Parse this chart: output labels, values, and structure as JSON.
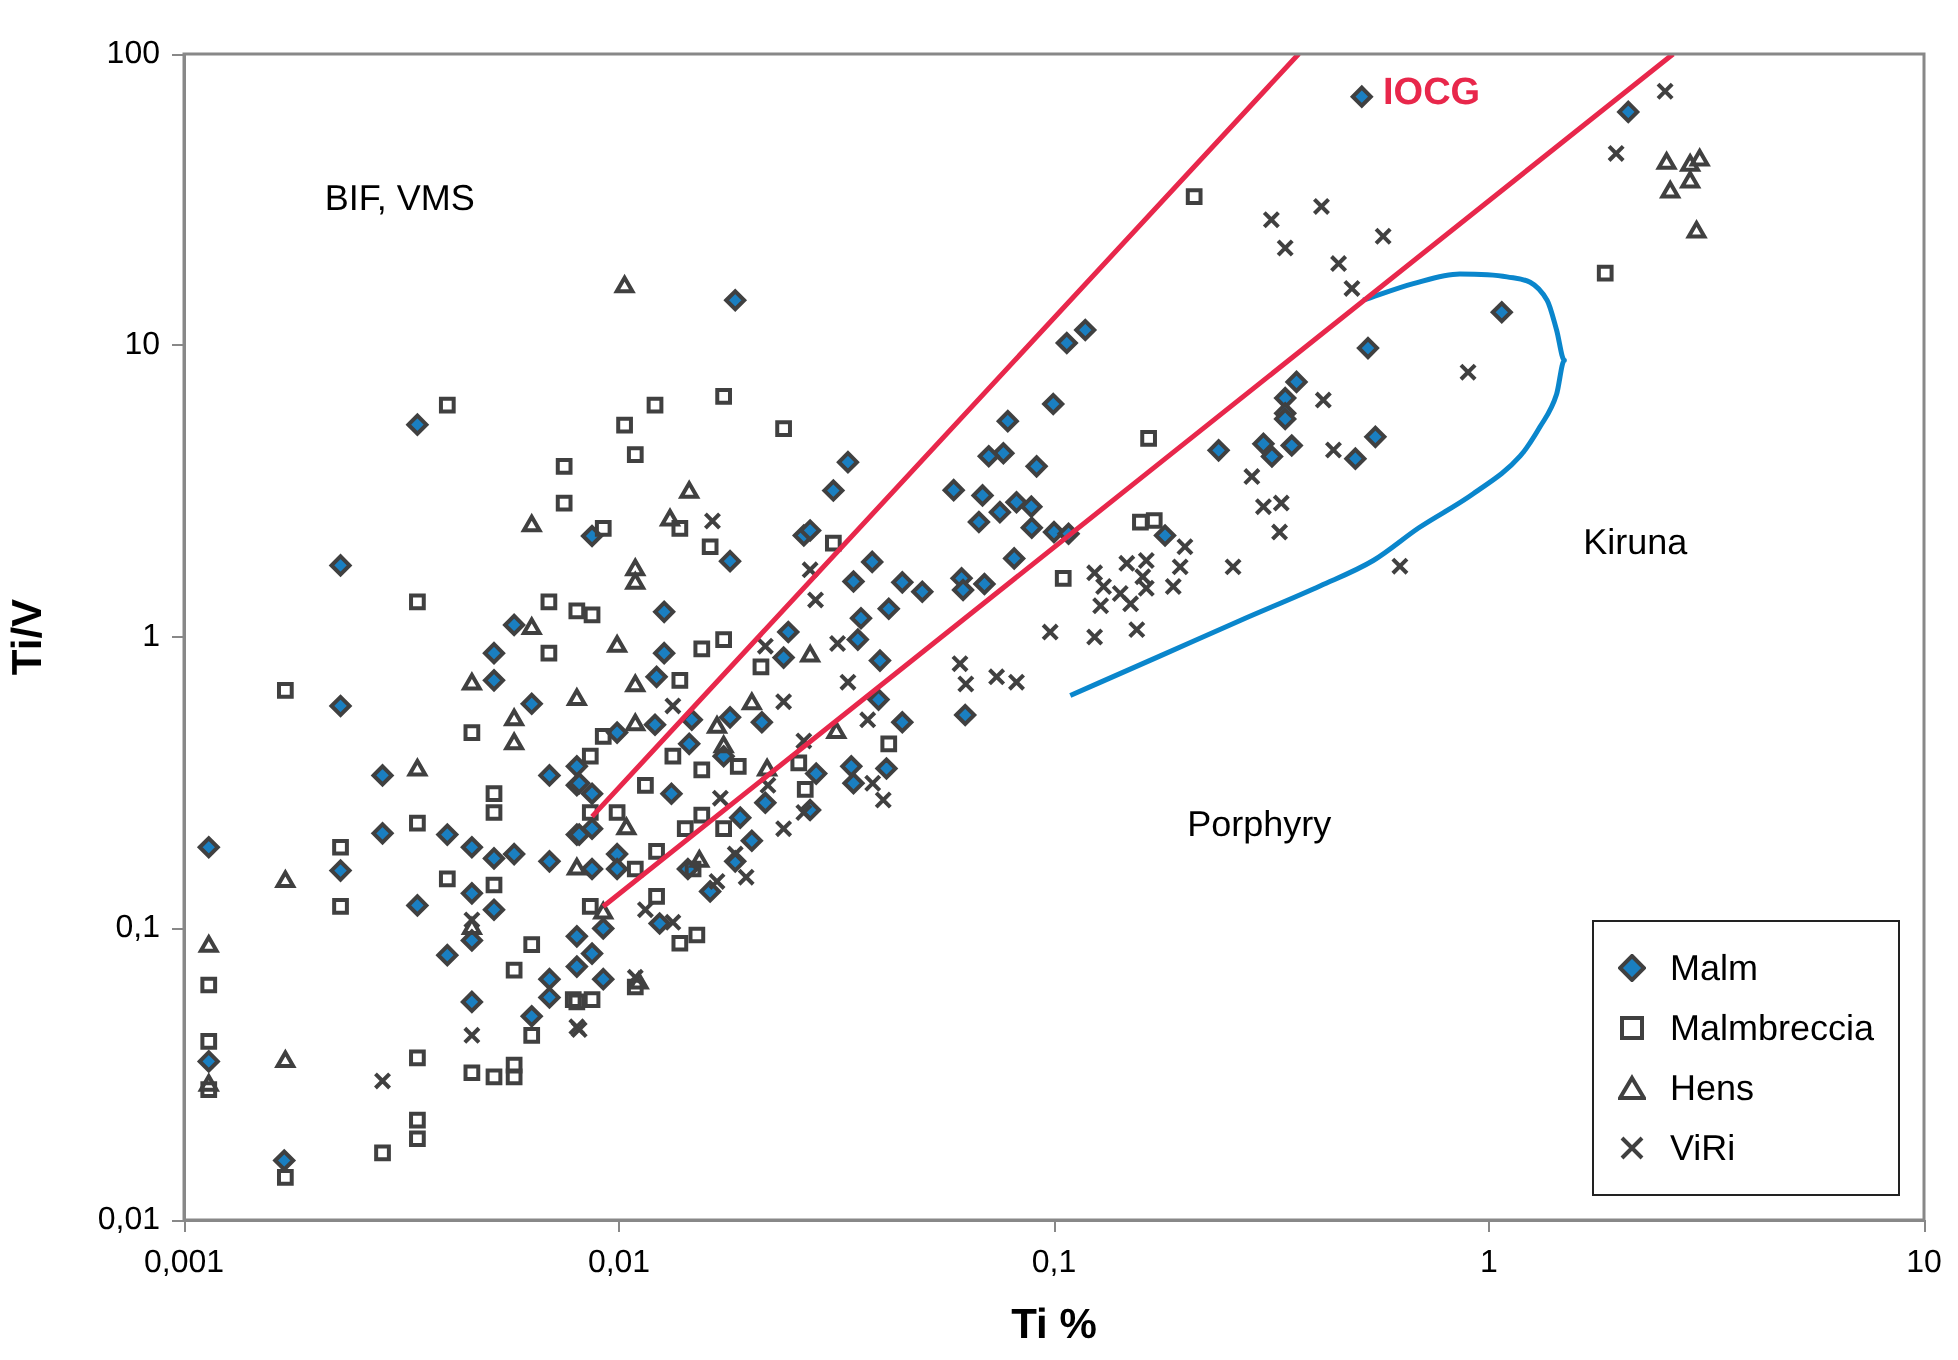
{
  "chart_data": {
    "type": "scatter",
    "xlabel": "Ti %",
    "ylabel": "Ti/V",
    "log": "xy",
    "legend": "bottom right",
    "xlim": [
      0.001,
      10
    ],
    "xticks": [
      {
        "value": 0.001,
        "label": "0,001"
      },
      {
        "value": 0.01,
        "label": "0,01"
      },
      {
        "value": 0.1,
        "label": "0,1"
      },
      1,
      10
    ],
    "ylim": [
      0.01,
      100
    ],
    "yticks": [
      {
        "value": 0.01,
        "label": "0,01"
      },
      {
        "value": 0.1,
        "label": "0,1"
      },
      1,
      10,
      100
    ],
    "annotations": [
      "BIF, VMS",
      "IOCG",
      "Kiruna",
      "Porphyry"
    ],
    "series": [
      {
        "name": "Malm",
        "color": "#1a7fc1",
        "marker": "diamond",
        "x": [
          0.00114,
          0.00114,
          0.0017,
          0.00344,
          0.00229,
          0.00229,
          0.00286,
          0.00229,
          0.00286,
          0.00344,
          0.00403,
          0.00459,
          0.00516,
          0.00574,
          0.00692,
          0.00459,
          0.00516,
          0.00403,
          0.00459,
          0.00459,
          0.00692,
          0.00692,
          0.0063,
          0.00516,
          0.00574,
          0.00516,
          0.0063,
          0.00692,
          0.008,
          0.008,
          0.008,
          0.008,
          0.008,
          0.0185,
          0.0336,
          0.0311,
          0.0266,
          0.0275,
          0.018,
          0.00867,
          0.0127,
          0.0127,
          0.0122,
          0.0346,
          0.0382,
          0.0448,
          0.0417,
          0.036,
          0.0398,
          0.0354,
          0.0245,
          0.0239,
          0.0395,
          0.0448,
          0.0412,
          0.0342,
          0.0346,
          0.0213,
          0.018,
          0.0174,
          0.0145,
          0.0121,
          0.0099,
          0.0132,
          0.0081,
          0.00867,
          0.0081,
          0.00867,
          0.0099,
          0.0099,
          0.00867,
          0.0092,
          0.00867,
          0.0092,
          0.0144,
          0.0162,
          0.0124,
          0.0185,
          0.0202,
          0.019,
          0.0217,
          0.0284,
          0.0275,
          0.0147,
          0.118,
          0.107,
          0.0996,
          0.0783,
          0.0765,
          0.0708,
          0.0912,
          0.0588,
          0.0685,
          0.0672,
          0.0751,
          0.082,
          0.0887,
          0.0889,
          0.1,
          0.108,
          0.081,
          0.0613,
          0.0618,
          0.0692,
          0.0498,
          0.0625,
          0.239,
          0.18,
          0.51,
          2.09,
          1.07,
          0.527,
          0.361,
          0.34,
          0.34,
          0.34,
          0.303,
          0.317,
          0.352,
          0.548,
          0.493
        ],
        "values": [
          0.19,
          0.035,
          0.016,
          5.35,
          1.76,
          0.58,
          0.335,
          0.158,
          0.212,
          0.12,
          0.21,
          0.19,
          0.174,
          0.18,
          0.17,
          0.132,
          0.116,
          0.081,
          0.091,
          0.056,
          0.067,
          0.058,
          0.05,
          0.88,
          1.1,
          0.71,
          0.59,
          0.335,
          0.36,
          0.31,
          0.21,
          0.094,
          0.074,
          14.3,
          3.98,
          3.18,
          2.23,
          2.32,
          1.82,
          2.22,
          1.22,
          0.88,
          0.73,
          1.55,
          1.81,
          1.54,
          1.25,
          1.16,
          0.83,
          0.98,
          1.04,
          0.85,
          0.61,
          0.51,
          0.354,
          0.36,
          0.315,
          0.51,
          0.53,
          0.39,
          0.43,
          0.5,
          0.47,
          0.29,
          0.315,
          0.29,
          0.21,
          0.22,
          0.18,
          0.16,
          0.16,
          0.1,
          0.082,
          0.067,
          0.16,
          0.134,
          0.104,
          0.17,
          0.2,
          0.24,
          0.27,
          0.34,
          0.255,
          0.52,
          11.3,
          10.2,
          6.3,
          5.5,
          4.27,
          4.17,
          3.85,
          3.19,
          3.06,
          2.48,
          2.68,
          2.9,
          2.8,
          2.37,
          2.29,
          2.26,
          1.86,
          1.59,
          1.45,
          1.52,
          1.43,
          0.54,
          4.37,
          2.23,
          71.4,
          63.3,
          13,
          9.8,
          7.5,
          6.6,
          5.85,
          5.6,
          4.6,
          4.16,
          4.54,
          4.86,
          4.09
        ]
      },
      {
        "name": "Malmbreccia",
        "color": "#404040",
        "marker": "square",
        "x": [
          0.00403,
          0.00748,
          0.00748,
          0.00344,
          0.00171,
          0.0069,
          0.008,
          0.0069,
          0.00459,
          0.00516,
          0.00516,
          0.00344,
          0.00229,
          0.00229,
          0.00403,
          0.00516,
          0.0063,
          0.00574,
          0.0063,
          0.008,
          0.00114,
          0.00114,
          0.00114,
          0.00344,
          0.00459,
          0.00516,
          0.00574,
          0.00574,
          0.00344,
          0.00344,
          0.00286,
          0.00171,
          0.0121,
          0.0103,
          0.0109,
          0.0174,
          0.0239,
          0.0092,
          0.0138,
          0.0162,
          0.0311,
          0.00867,
          0.0155,
          0.0174,
          0.0212,
          0.0138,
          0.0092,
          0.00859,
          0.0115,
          0.0099,
          0.00859,
          0.0133,
          0.0155,
          0.0188,
          0.0268,
          0.0259,
          0.0417,
          0.0142,
          0.0155,
          0.0174,
          0.0109,
          0.0122,
          0.0122,
          0.0148,
          0.0138,
          0.0151,
          0.00859,
          0.00785,
          0.00867,
          0.0109,
          0.165,
          0.158,
          0.17,
          0.105,
          0.21,
          1.85
        ],
        "values": [
          6.24,
          3.85,
          2.88,
          1.32,
          0.656,
          1.32,
          1.23,
          0.88,
          0.47,
          0.29,
          0.25,
          0.23,
          0.19,
          0.119,
          0.148,
          0.141,
          0.088,
          0.072,
          0.043,
          0.056,
          0.064,
          0.041,
          0.028,
          0.036,
          0.032,
          0.031,
          0.034,
          0.031,
          0.022,
          0.019,
          0.017,
          0.014,
          6.24,
          5.33,
          4.22,
          6.69,
          5.19,
          2.36,
          2.36,
          2.04,
          2.1,
          1.19,
          0.91,
          0.98,
          0.79,
          0.71,
          0.456,
          0.39,
          0.31,
          0.25,
          0.25,
          0.39,
          0.35,
          0.36,
          0.3,
          0.37,
          0.43,
          0.22,
          0.245,
          0.22,
          0.16,
          0.184,
          0.129,
          0.16,
          0.089,
          0.095,
          0.119,
          0.057,
          0.057,
          0.063,
          4.8,
          2.48,
          2.51,
          1.59,
          32.4,
          17.7
        ]
      },
      {
        "name": "Hens",
        "color": "#404040",
        "marker": "triangle",
        "x": [
          0.0063,
          0.0063,
          0.00459,
          0.008,
          0.00574,
          0.00574,
          0.00344,
          0.00171,
          0.008,
          0.00459,
          0.00114,
          0.00171,
          0.00114,
          0.0103,
          0.0145,
          0.0131,
          0.0109,
          0.0109,
          0.0099,
          0.0275,
          0.0109,
          0.0202,
          0.0109,
          0.0168,
          0.0174,
          0.0316,
          0.0219,
          0.0104,
          0.0153,
          0.0111,
          0.0092,
          2.56,
          3.05,
          2.9,
          2.61,
          2.9,
          3.0
        ],
        "values": [
          2.41,
          1.07,
          0.69,
          0.61,
          0.52,
          0.43,
          0.35,
          0.145,
          0.16,
          0.1,
          0.087,
          0.035,
          0.029,
          15.9,
          3.14,
          2.52,
          1.7,
          1.53,
          0.93,
          0.86,
          0.68,
          0.59,
          0.5,
          0.49,
          0.42,
          0.47,
          0.35,
          0.22,
          0.17,
          0.065,
          0.113,
          42.2,
          43.3,
          41.5,
          33.6,
          36.4,
          24.5
        ]
      },
      {
        "name": "ViRi",
        "color": "#404040",
        "marker": "cross",
        "x": [
          0.00459,
          0.00459,
          0.00286,
          0.008,
          0.0164,
          0.0283,
          0.0275,
          0.0318,
          0.0336,
          0.0239,
          0.0133,
          0.0373,
          0.0266,
          0.0217,
          0.0171,
          0.022,
          0.0266,
          0.0239,
          0.0185,
          0.0196,
          0.0168,
          0.0115,
          0.0133,
          0.0405,
          0.0383,
          0.0081,
          0.0109,
          0.0608,
          0.0627,
          0.0738,
          0.082,
          0.098,
          0.124,
          0.124,
          0.13,
          0.128,
          0.147,
          0.142,
          0.155,
          0.163,
          0.16,
          0.15,
          0.163,
          0.188,
          0.195,
          0.2,
          0.258,
          2.54,
          1.96,
          0.412,
          0.316,
          0.34,
          0.571,
          0.451,
          0.484,
          0.895,
          0.416,
          0.439,
          0.285,
          0.303,
          0.333,
          0.33,
          0.624
        ],
        "values": [
          0.107,
          0.043,
          0.03,
          0.046,
          2.5,
          1.34,
          1.7,
          0.95,
          0.7,
          0.6,
          0.58,
          0.52,
          0.44,
          0.93,
          0.28,
          0.31,
          0.25,
          0.22,
          0.18,
          0.15,
          0.145,
          0.116,
          0.105,
          0.276,
          0.315,
          0.045,
          0.068,
          0.81,
          0.69,
          0.73,
          0.7,
          1.04,
          1.0,
          1.66,
          1.49,
          1.28,
          1.79,
          1.41,
          1.06,
          1.83,
          1.61,
          1.3,
          1.47,
          1.49,
          1.74,
          2.04,
          1.74,
          74.5,
          45.6,
          30,
          27,
          21.6,
          23.7,
          19.1,
          15.7,
          8.1,
          6.5,
          4.38,
          3.55,
          2.8,
          2.88,
          2.29,
          1.75
        ]
      },
      {
        "type": "line",
        "color": "#e8274b",
        "x": [
          0.00867,
          0.365
        ],
        "values": [
          0.242,
          100
        ]
      },
      {
        "type": "line",
        "color": "#e8274b",
        "x": [
          0.0092,
          2.65
        ],
        "values": [
          0.119,
          100
        ]
      },
      {
        "type": "line",
        "color": "#0a86cc",
        "x": [
          0.109,
          0.175,
          0.268,
          0.41,
          0.542,
          0.69,
          0.92,
          1.18,
          1.31,
          1.43,
          1.49,
          1.43,
          1.36,
          1.1,
          0.857,
          0.67,
          0.514
        ],
        "values": [
          0.63,
          0.86,
          1.14,
          1.5,
          1.83,
          2.37,
          3.1,
          4.18,
          5.26,
          6.8,
          8.9,
          11.3,
          14.3,
          17.2,
          17.6,
          16.3,
          14.3
        ]
      }
    ]
  }
}
